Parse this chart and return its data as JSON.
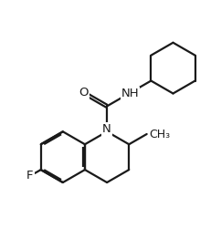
{
  "background_color": "#ffffff",
  "line_color": "#1a1a1a",
  "line_width": 1.6,
  "font_size": 9.5,
  "figsize": [
    2.19,
    2.73
  ],
  "dpi": 100,
  "bl": 1.0,
  "xlim": [
    0,
    9
  ],
  "ylim": [
    0,
    11.5
  ]
}
